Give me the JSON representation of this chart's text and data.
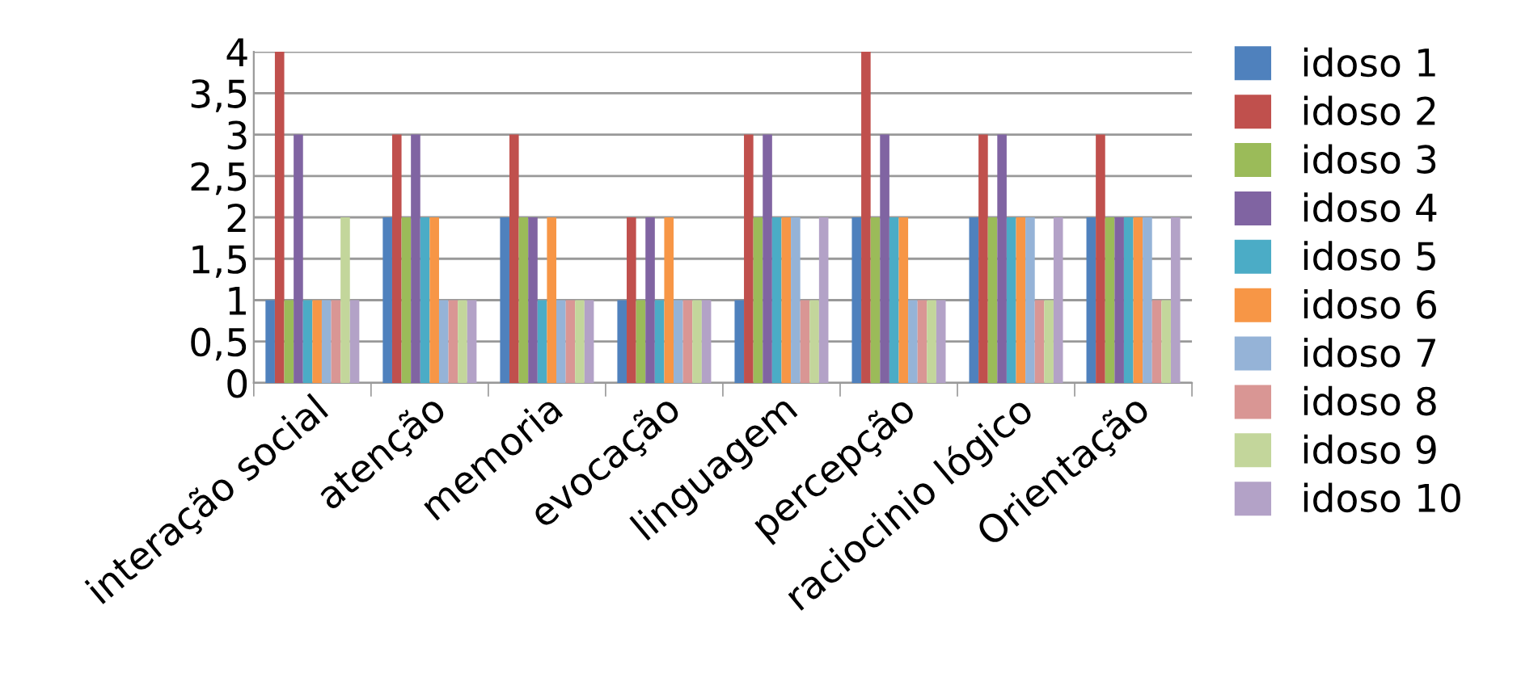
{
  "chart_data": {
    "type": "bar",
    "categories": [
      "interação social",
      "atenção",
      "memoria",
      "evocação",
      "linguagem",
      "percepção",
      "raciocinio lógico",
      "Orientação"
    ],
    "series": [
      {
        "name": "idoso 1",
        "color": "#4f81bd",
        "values": [
          1,
          2,
          2,
          1,
          1,
          2,
          2,
          2
        ]
      },
      {
        "name": "idoso 2",
        "color": "#c0504d",
        "values": [
          4,
          3,
          3,
          2,
          3,
          4,
          3,
          3
        ]
      },
      {
        "name": "idoso 3",
        "color": "#9bbb59",
        "values": [
          1,
          2,
          2,
          1,
          2,
          2,
          2,
          2
        ]
      },
      {
        "name": "idoso 4",
        "color": "#8064a2",
        "values": [
          3,
          3,
          2,
          2,
          3,
          3,
          3,
          2
        ]
      },
      {
        "name": "idoso 5",
        "color": "#4bacc6",
        "values": [
          1,
          2,
          1,
          1,
          2,
          2,
          2,
          2
        ]
      },
      {
        "name": "idoso 6",
        "color": "#f79646",
        "values": [
          1,
          2,
          2,
          2,
          2,
          2,
          2,
          2
        ]
      },
      {
        "name": "idoso 7",
        "color": "#95b3d7",
        "values": [
          1,
          1,
          1,
          1,
          2,
          1,
          2,
          2
        ]
      },
      {
        "name": "idoso 8",
        "color": "#d99694",
        "values": [
          1,
          1,
          1,
          1,
          1,
          1,
          1,
          1
        ]
      },
      {
        "name": "idoso 9",
        "color": "#c3d69b",
        "values": [
          2,
          1,
          1,
          1,
          1,
          1,
          1,
          1
        ]
      },
      {
        "name": "idoso 10",
        "color": "#b3a2c7",
        "values": [
          1,
          1,
          1,
          1,
          2,
          1,
          2,
          2
        ]
      }
    ],
    "ylim": [
      0,
      4
    ],
    "yticks": [
      0,
      {
        "value": 0.5,
        "label": "0,5"
      },
      1,
      {
        "value": 1.5,
        "label": "1,5"
      },
      2,
      {
        "value": 2.5,
        "label": "2,5"
      },
      3,
      {
        "value": 3.5,
        "label": "3,5"
      },
      4
    ],
    "grid": "y",
    "legend": "right"
  }
}
